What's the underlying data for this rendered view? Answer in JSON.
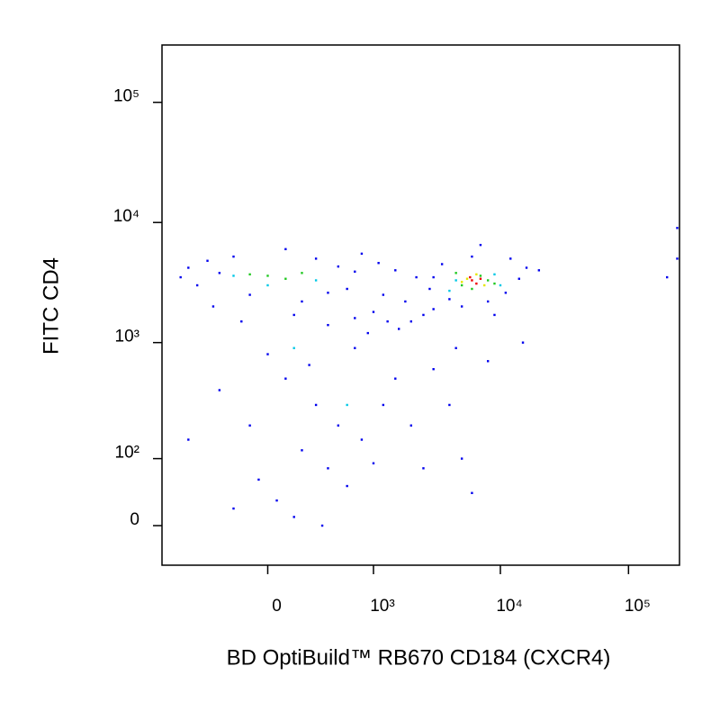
{
  "chart_data": {
    "type": "scatter",
    "x_label": "BD OptiBuild™ RB670 CD184 (CXCR4)",
    "y_label": "FITC CD4",
    "xscale": "biexponential",
    "yscale": "biexponential",
    "xlim": [
      -1000,
      250000
    ],
    "ylim": [
      -50,
      300000
    ],
    "xticks": [
      0,
      {
        "value": 1000,
        "label": "10³"
      },
      {
        "value": 10000,
        "label": "10⁴"
      },
      {
        "value": 100000,
        "label": "10⁵"
      }
    ],
    "yticks": [
      0,
      {
        "value": 100,
        "label": "10²"
      },
      {
        "value": 1000,
        "label": "10³"
      },
      {
        "value": 10000,
        "label": "10⁴"
      },
      {
        "value": 100000,
        "label": "10⁵"
      }
    ],
    "series": [
      {
        "color": "#0000ee",
        "x": [
          -600,
          -500,
          -400,
          -300,
          -700,
          -200,
          300,
          500,
          700,
          600,
          -100,
          200,
          400,
          -350,
          100,
          800,
          1000,
          1300,
          1600,
          2000,
          2500,
          1200,
          900,
          1800,
          3000,
          700,
          400,
          150,
          -150,
          2200,
          1500,
          1100,
          3000,
          3500,
          4000,
          5000,
          8000,
          11000,
          14000,
          16000,
          12000,
          6000,
          20000,
          2800,
          9000,
          7000,
          0,
          100,
          300,
          -100,
          200,
          400,
          600,
          50,
          -50,
          150,
          800,
          1200,
          1500,
          2000,
          3000,
          4000,
          5000,
          6000,
          700,
          -300,
          -600,
          250,
          1000,
          350,
          500,
          -200,
          2500,
          4500,
          8000,
          15000,
          240000,
          240000,
          200000
        ],
        "y": [
          4200,
          3000,
          4800,
          3800,
          3500,
          5200,
          5000,
          4300,
          3900,
          2800,
          2500,
          2200,
          2600,
          2000,
          6000,
          5500,
          1800,
          1500,
          1300,
          1500,
          1700,
          2500,
          1200,
          2200,
          1900,
          1600,
          1400,
          1700,
          1500,
          3500,
          4000,
          4600,
          3500,
          4500,
          2300,
          2000,
          2200,
          2600,
          3400,
          4200,
          5000,
          5200,
          4000,
          2800,
          1700,
          6500,
          800,
          500,
          300,
          200,
          120,
          80,
          50,
          30,
          60,
          10,
          150,
          300,
          500,
          200,
          600,
          300,
          100,
          40,
          900,
          400,
          150,
          650,
          90,
          0,
          200,
          20,
          80,
          900,
          700,
          1000,
          9000,
          5000,
          3500
        ]
      },
      {
        "color": "#00c8e6",
        "x": [
          -200,
          0,
          300,
          4500,
          10000,
          4000,
          9000,
          150,
          600
        ],
        "y": [
          3600,
          3000,
          3300,
          3300,
          3000,
          2700,
          3700,
          900,
          300
        ]
      },
      {
        "color": "#20c820",
        "x": [
          -100,
          0,
          100,
          200,
          5000,
          6000,
          7000,
          8000,
          4500,
          9000
        ],
        "y": [
          3700,
          3600,
          3400,
          3800,
          3000,
          2800,
          3600,
          3300,
          3800,
          3100
        ]
      },
      {
        "color": "#e6e600",
        "x": [
          5500,
          7500,
          6500,
          5000
        ],
        "y": [
          3400,
          3000,
          3700,
          3200
        ]
      },
      {
        "color": "#ee0000",
        "x": [
          6000,
          6500,
          7000,
          5800
        ],
        "y": [
          3300,
          3100,
          3400,
          3500
        ]
      }
    ]
  }
}
